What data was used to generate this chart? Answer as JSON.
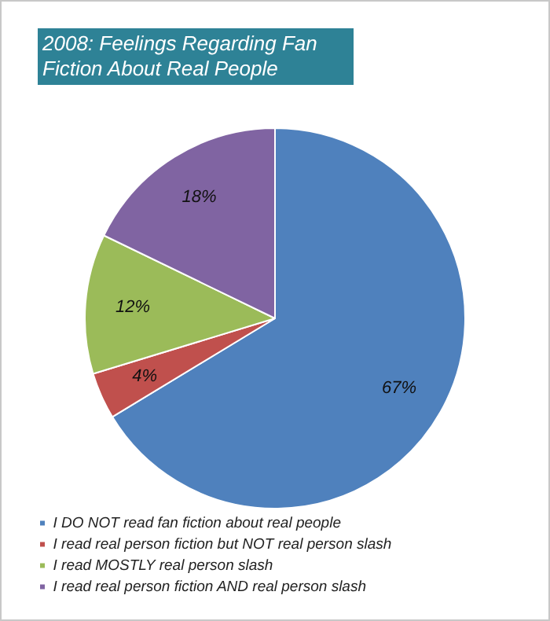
{
  "chart_data": {
    "type": "pie",
    "title": "2008: Feelings Regarding Fan Fiction About Real People",
    "categories": [
      "I DO NOT read fan fiction about real people",
      "I read real person fiction but NOT real person slash",
      "I read MOSTLY real person slash",
      "I read real person fiction AND real person slash"
    ],
    "values": [
      67,
      4,
      12,
      18
    ],
    "colors": [
      "#4f81bd",
      "#c0504d",
      "#9bbb59",
      "#8064a2"
    ],
    "legend": "bottom",
    "data_labels": true,
    "value_labels": [
      "67%",
      "4%",
      "12%",
      "18%"
    ]
  }
}
